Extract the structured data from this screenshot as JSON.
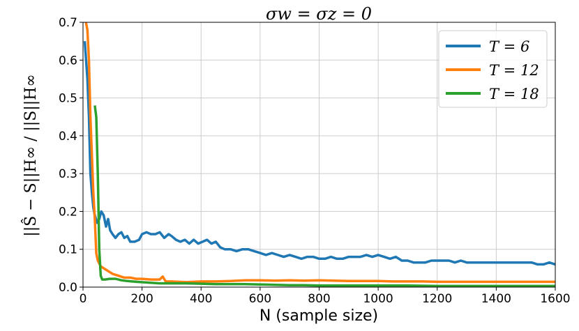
{
  "chart_data": {
    "type": "line",
    "title": "σw = σz = 0",
    "xlabel": "N (sample size)",
    "ylabel": "||Ŝ − S||H∞ / ||S||H∞",
    "xlim": [
      0,
      1600
    ],
    "ylim": [
      0,
      0.7
    ],
    "grid": true,
    "legend_position": "top-right",
    "x_ticks": [
      "0",
      "200",
      "400",
      "600",
      "800",
      "1000",
      "1200",
      "1400",
      "1600"
    ],
    "y_ticks": [
      "0.0",
      "0.1",
      "0.2",
      "0.3",
      "0.4",
      "0.5",
      "0.6",
      "0.7"
    ],
    "series": [
      {
        "name": "T = 6",
        "color": "#1f77b4",
        "points": [
          [
            6,
            0.65
          ],
          [
            15,
            0.55
          ],
          [
            20,
            0.45
          ],
          [
            25,
            0.3
          ],
          [
            30,
            0.25
          ],
          [
            35,
            0.21
          ],
          [
            40,
            0.19
          ],
          [
            48,
            0.17
          ],
          [
            55,
            0.18
          ],
          [
            62,
            0.2
          ],
          [
            70,
            0.19
          ],
          [
            78,
            0.16
          ],
          [
            85,
            0.18
          ],
          [
            92,
            0.15
          ],
          [
            100,
            0.14
          ],
          [
            110,
            0.13
          ],
          [
            120,
            0.14
          ],
          [
            130,
            0.145
          ],
          [
            140,
            0.13
          ],
          [
            150,
            0.135
          ],
          [
            160,
            0.12
          ],
          [
            175,
            0.12
          ],
          [
            190,
            0.125
          ],
          [
            200,
            0.14
          ],
          [
            215,
            0.145
          ],
          [
            230,
            0.14
          ],
          [
            245,
            0.14
          ],
          [
            260,
            0.145
          ],
          [
            275,
            0.13
          ],
          [
            290,
            0.14
          ],
          [
            300,
            0.135
          ],
          [
            315,
            0.125
          ],
          [
            330,
            0.12
          ],
          [
            345,
            0.125
          ],
          [
            360,
            0.115
          ],
          [
            375,
            0.125
          ],
          [
            390,
            0.115
          ],
          [
            405,
            0.12
          ],
          [
            420,
            0.125
          ],
          [
            435,
            0.115
          ],
          [
            450,
            0.12
          ],
          [
            465,
            0.105
          ],
          [
            480,
            0.1
          ],
          [
            500,
            0.1
          ],
          [
            520,
            0.095
          ],
          [
            540,
            0.1
          ],
          [
            560,
            0.1
          ],
          [
            580,
            0.095
          ],
          [
            600,
            0.09
          ],
          [
            620,
            0.085
          ],
          [
            640,
            0.09
          ],
          [
            660,
            0.085
          ],
          [
            680,
            0.08
          ],
          [
            700,
            0.085
          ],
          [
            720,
            0.08
          ],
          [
            740,
            0.075
          ],
          [
            760,
            0.08
          ],
          [
            780,
            0.08
          ],
          [
            800,
            0.075
          ],
          [
            820,
            0.075
          ],
          [
            840,
            0.08
          ],
          [
            860,
            0.075
          ],
          [
            880,
            0.075
          ],
          [
            900,
            0.08
          ],
          [
            920,
            0.08
          ],
          [
            940,
            0.08
          ],
          [
            960,
            0.085
          ],
          [
            980,
            0.08
          ],
          [
            1000,
            0.085
          ],
          [
            1020,
            0.08
          ],
          [
            1040,
            0.075
          ],
          [
            1060,
            0.08
          ],
          [
            1080,
            0.07
          ],
          [
            1100,
            0.07
          ],
          [
            1120,
            0.065
          ],
          [
            1140,
            0.065
          ],
          [
            1160,
            0.065
          ],
          [
            1180,
            0.07
          ],
          [
            1200,
            0.07
          ],
          [
            1220,
            0.07
          ],
          [
            1240,
            0.07
          ],
          [
            1260,
            0.065
          ],
          [
            1280,
            0.07
          ],
          [
            1300,
            0.065
          ],
          [
            1320,
            0.065
          ],
          [
            1340,
            0.065
          ],
          [
            1360,
            0.065
          ],
          [
            1380,
            0.065
          ],
          [
            1400,
            0.065
          ],
          [
            1420,
            0.065
          ],
          [
            1440,
            0.065
          ],
          [
            1460,
            0.065
          ],
          [
            1480,
            0.065
          ],
          [
            1500,
            0.065
          ],
          [
            1520,
            0.065
          ],
          [
            1540,
            0.06
          ],
          [
            1560,
            0.06
          ],
          [
            1580,
            0.065
          ],
          [
            1600,
            0.06
          ]
        ]
      },
      {
        "name": "T = 12",
        "color": "#ff7f0e",
        "points": [
          [
            10,
            0.7
          ],
          [
            15,
            0.68
          ],
          [
            20,
            0.6
          ],
          [
            25,
            0.45
          ],
          [
            30,
            0.35
          ],
          [
            35,
            0.25
          ],
          [
            40,
            0.18
          ],
          [
            45,
            0.09
          ],
          [
            50,
            0.07
          ],
          [
            60,
            0.055
          ],
          [
            70,
            0.05
          ],
          [
            80,
            0.045
          ],
          [
            90,
            0.04
          ],
          [
            100,
            0.035
          ],
          [
            120,
            0.03
          ],
          [
            140,
            0.025
          ],
          [
            160,
            0.025
          ],
          [
            180,
            0.022
          ],
          [
            200,
            0.022
          ],
          [
            230,
            0.02
          ],
          [
            260,
            0.02
          ],
          [
            270,
            0.028
          ],
          [
            280,
            0.015
          ],
          [
            300,
            0.015
          ],
          [
            350,
            0.013
          ],
          [
            400,
            0.015
          ],
          [
            450,
            0.015
          ],
          [
            500,
            0.016
          ],
          [
            550,
            0.018
          ],
          [
            600,
            0.018
          ],
          [
            650,
            0.017
          ],
          [
            700,
            0.018
          ],
          [
            750,
            0.017
          ],
          [
            800,
            0.018
          ],
          [
            850,
            0.017
          ],
          [
            900,
            0.016
          ],
          [
            950,
            0.016
          ],
          [
            1000,
            0.016
          ],
          [
            1050,
            0.015
          ],
          [
            1100,
            0.015
          ],
          [
            1150,
            0.015
          ],
          [
            1200,
            0.014
          ],
          [
            1300,
            0.014
          ],
          [
            1400,
            0.014
          ],
          [
            1500,
            0.014
          ],
          [
            1600,
            0.014
          ]
        ]
      },
      {
        "name": "T = 18",
        "color": "#2ca02c",
        "points": [
          [
            40,
            0.48
          ],
          [
            45,
            0.45
          ],
          [
            50,
            0.3
          ],
          [
            55,
            0.1
          ],
          [
            60,
            0.03
          ],
          [
            65,
            0.02
          ],
          [
            75,
            0.02
          ],
          [
            90,
            0.022
          ],
          [
            110,
            0.022
          ],
          [
            130,
            0.018
          ],
          [
            150,
            0.016
          ],
          [
            180,
            0.014
          ],
          [
            220,
            0.012
          ],
          [
            260,
            0.01
          ],
          [
            300,
            0.01
          ],
          [
            350,
            0.01
          ],
          [
            400,
            0.009
          ],
          [
            450,
            0.008
          ],
          [
            500,
            0.008
          ],
          [
            550,
            0.008
          ],
          [
            600,
            0.007
          ],
          [
            650,
            0.006
          ],
          [
            700,
            0.005
          ],
          [
            750,
            0.005
          ],
          [
            800,
            0.004
          ],
          [
            900,
            0.004
          ],
          [
            1000,
            0.004
          ],
          [
            1100,
            0.004
          ],
          [
            1200,
            0.003
          ],
          [
            1300,
            0.003
          ],
          [
            1400,
            0.003
          ],
          [
            1500,
            0.003
          ],
          [
            1600,
            0.003
          ]
        ]
      }
    ]
  }
}
